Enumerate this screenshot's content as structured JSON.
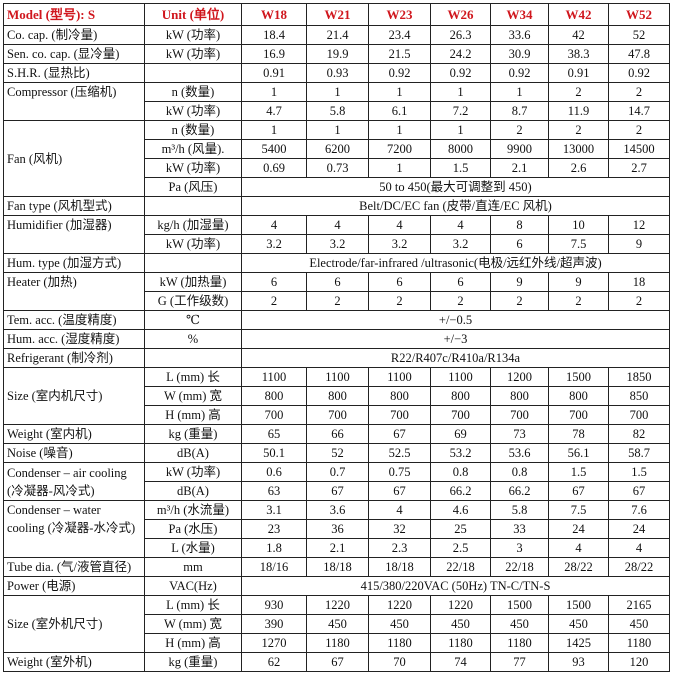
{
  "header": {
    "model": "Model (型号): S",
    "unit": "Unit (单位)",
    "models": [
      "W18",
      "W21",
      "W23",
      "W26",
      "W34",
      "W42",
      "W52"
    ]
  },
  "accent_color": "#d0161d",
  "groups": [
    {
      "label": "Co. cap. (制冷量)",
      "rows": [
        {
          "unit": "kW (功率)",
          "values": [
            "18.4",
            "21.4",
            "23.4",
            "26.3",
            "33.6",
            "42",
            "52"
          ]
        }
      ]
    },
    {
      "label": "Sen. co. cap. (显冷量)",
      "rows": [
        {
          "unit": "kW (功率)",
          "values": [
            "16.9",
            "19.9",
            "21.5",
            "24.2",
            "30.9",
            "38.3",
            "47.8"
          ]
        }
      ]
    },
    {
      "label": "S.H.R. (显热比)",
      "rows": [
        {
          "unit": "",
          "values": [
            "0.91",
            "0.93",
            "0.92",
            "0.92",
            "0.92",
            "0.91",
            "0.92"
          ]
        }
      ]
    },
    {
      "label": "Compressor (压缩机)",
      "valign": "top",
      "rows": [
        {
          "unit": "n (数量)",
          "values": [
            "1",
            "1",
            "1",
            "1",
            "1",
            "2",
            "2"
          ]
        },
        {
          "unit": "kW (功率)",
          "values": [
            "4.7",
            "5.8",
            "6.1",
            "7.2",
            "8.7",
            "11.9",
            "14.7"
          ]
        }
      ]
    },
    {
      "label": "Fan (风机)",
      "rows": [
        {
          "unit": "n (数量)",
          "values": [
            "1",
            "1",
            "1",
            "1",
            "2",
            "2",
            "2"
          ]
        },
        {
          "unit": "m³/h (风量).",
          "values": [
            "5400",
            "6200",
            "7200",
            "8000",
            "9900",
            "13000",
            "14500"
          ]
        },
        {
          "unit": "kW (功率)",
          "values": [
            "0.69",
            "0.73",
            "1",
            "1.5",
            "2.1",
            "2.6",
            "2.7"
          ]
        },
        {
          "unit": "Pa (风压)",
          "span": "50 to 450(最大可调整到 450)"
        }
      ]
    },
    {
      "label": "Fan type (风机型式)",
      "rows": [
        {
          "unit": "",
          "span": "Belt/DC/EC fan (皮带/直连/EC 风机)"
        }
      ]
    },
    {
      "label": "Humidifier (加湿器)",
      "valign": "top",
      "rows": [
        {
          "unit": "kg/h (加湿量)",
          "values": [
            "4",
            "4",
            "4",
            "4",
            "8",
            "10",
            "12"
          ]
        },
        {
          "unit": "kW (功率)",
          "values": [
            "3.2",
            "3.2",
            "3.2",
            "3.2",
            "6",
            "7.5",
            "9"
          ]
        }
      ]
    },
    {
      "label": "Hum. type (加湿方式)",
      "rows": [
        {
          "unit": "",
          "span": "Electrode/far-infrared /ultrasonic(电极/远红外线/超声波)"
        }
      ]
    },
    {
      "label": "Heater (加热)",
      "valign": "top",
      "rows": [
        {
          "unit": "kW (加热量)",
          "values": [
            "6",
            "6",
            "6",
            "6",
            "9",
            "9",
            "18"
          ]
        },
        {
          "unit": "G (工作级数)",
          "values": [
            "2",
            "2",
            "2",
            "2",
            "2",
            "2",
            "2"
          ]
        }
      ]
    },
    {
      "label": "Tem. acc. (温度精度)",
      "rows": [
        {
          "unit": "℃",
          "span": "+/−0.5"
        }
      ]
    },
    {
      "label": "Hum. acc. (湿度精度)",
      "rows": [
        {
          "unit": "%",
          "span": "+/−3"
        }
      ]
    },
    {
      "label": "Refrigerant (制冷剂)",
      "rows": [
        {
          "unit": "",
          "span": "R22/R407c/R410a/R134a"
        }
      ]
    },
    {
      "label": "Size (室内机尺寸)",
      "rows": [
        {
          "unit": "L (mm) 长",
          "values": [
            "1100",
            "1100",
            "1100",
            "1100",
            "1200",
            "1500",
            "1850"
          ]
        },
        {
          "unit": "W (mm) 宽",
          "values": [
            "800",
            "800",
            "800",
            "800",
            "800",
            "800",
            "850"
          ]
        },
        {
          "unit": "H (mm) 高",
          "values": [
            "700",
            "700",
            "700",
            "700",
            "700",
            "700",
            "700"
          ]
        }
      ]
    },
    {
      "label": "Weight (室内机)",
      "rows": [
        {
          "unit": "kg (重量)",
          "values": [
            "65",
            "66",
            "67",
            "69",
            "73",
            "78",
            "82"
          ]
        }
      ]
    },
    {
      "label": "Noise (噪音)",
      "rows": [
        {
          "unit": "dB(A)",
          "values": [
            "50.1",
            "52",
            "52.5",
            "53.2",
            "53.6",
            "56.1",
            "58.7"
          ]
        }
      ]
    },
    {
      "label": "Condenser – air cooling (冷凝器-风冷式)",
      "rows": [
        {
          "unit": "kW (功率)",
          "values": [
            "0.6",
            "0.7",
            "0.75",
            "0.8",
            "0.8",
            "1.5",
            "1.5"
          ]
        },
        {
          "unit": "dB(A)",
          "values": [
            "63",
            "67",
            "67",
            "66.2",
            "66.2",
            "67",
            "67"
          ]
        }
      ]
    },
    {
      "label": "Condenser – water cooling (冷凝器-水冷式)",
      "valign": "top",
      "rows": [
        {
          "unit": "m³/h (水流量)",
          "values": [
            "3.1",
            "3.6",
            "4",
            "4.6",
            "5.8",
            "7.5",
            "7.6"
          ]
        },
        {
          "unit": "Pa (水压)",
          "values": [
            "23",
            "36",
            "32",
            "25",
            "33",
            "24",
            "24"
          ]
        },
        {
          "unit": "L (水量)",
          "values": [
            "1.8",
            "2.1",
            "2.3",
            "2.5",
            "3",
            "4",
            "4"
          ]
        }
      ]
    },
    {
      "label": "Tube dia. (气/液管直径)",
      "rows": [
        {
          "unit": "mm",
          "values": [
            "18/16",
            "18/18",
            "18/18",
            "22/18",
            "22/18",
            "28/22",
            "28/22"
          ]
        }
      ]
    },
    {
      "label": "Power (电源)",
      "rows": [
        {
          "unit": "VAC(Hz)",
          "span": "415/380/220VAC (50Hz) TN-C/TN-S"
        }
      ]
    },
    {
      "label": "Size (室外机尺寸)",
      "rows": [
        {
          "unit": "L (mm) 长",
          "values": [
            "930",
            "1220",
            "1220",
            "1220",
            "1500",
            "1500",
            "2165"
          ]
        },
        {
          "unit": "W (mm) 宽",
          "values": [
            "390",
            "450",
            "450",
            "450",
            "450",
            "450",
            "450"
          ]
        },
        {
          "unit": "H (mm) 高",
          "values": [
            "1270",
            "1180",
            "1180",
            "1180",
            "1180",
            "1425",
            "1180"
          ]
        }
      ]
    },
    {
      "label": "Weight (室外机)",
      "rows": [
        {
          "unit": "kg (重量)",
          "values": [
            "62",
            "67",
            "70",
            "74",
            "77",
            "93",
            "120"
          ]
        }
      ]
    }
  ]
}
